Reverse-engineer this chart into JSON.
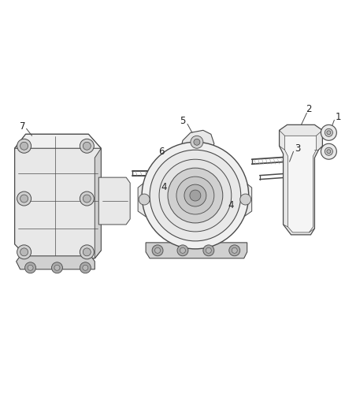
{
  "background_color": "#ffffff",
  "figure_width": 4.38,
  "figure_height": 5.33,
  "dpi": 100,
  "line_color": "#4a4a4a",
  "label_fontsize": 8.5,
  "label_color": "#222222"
}
